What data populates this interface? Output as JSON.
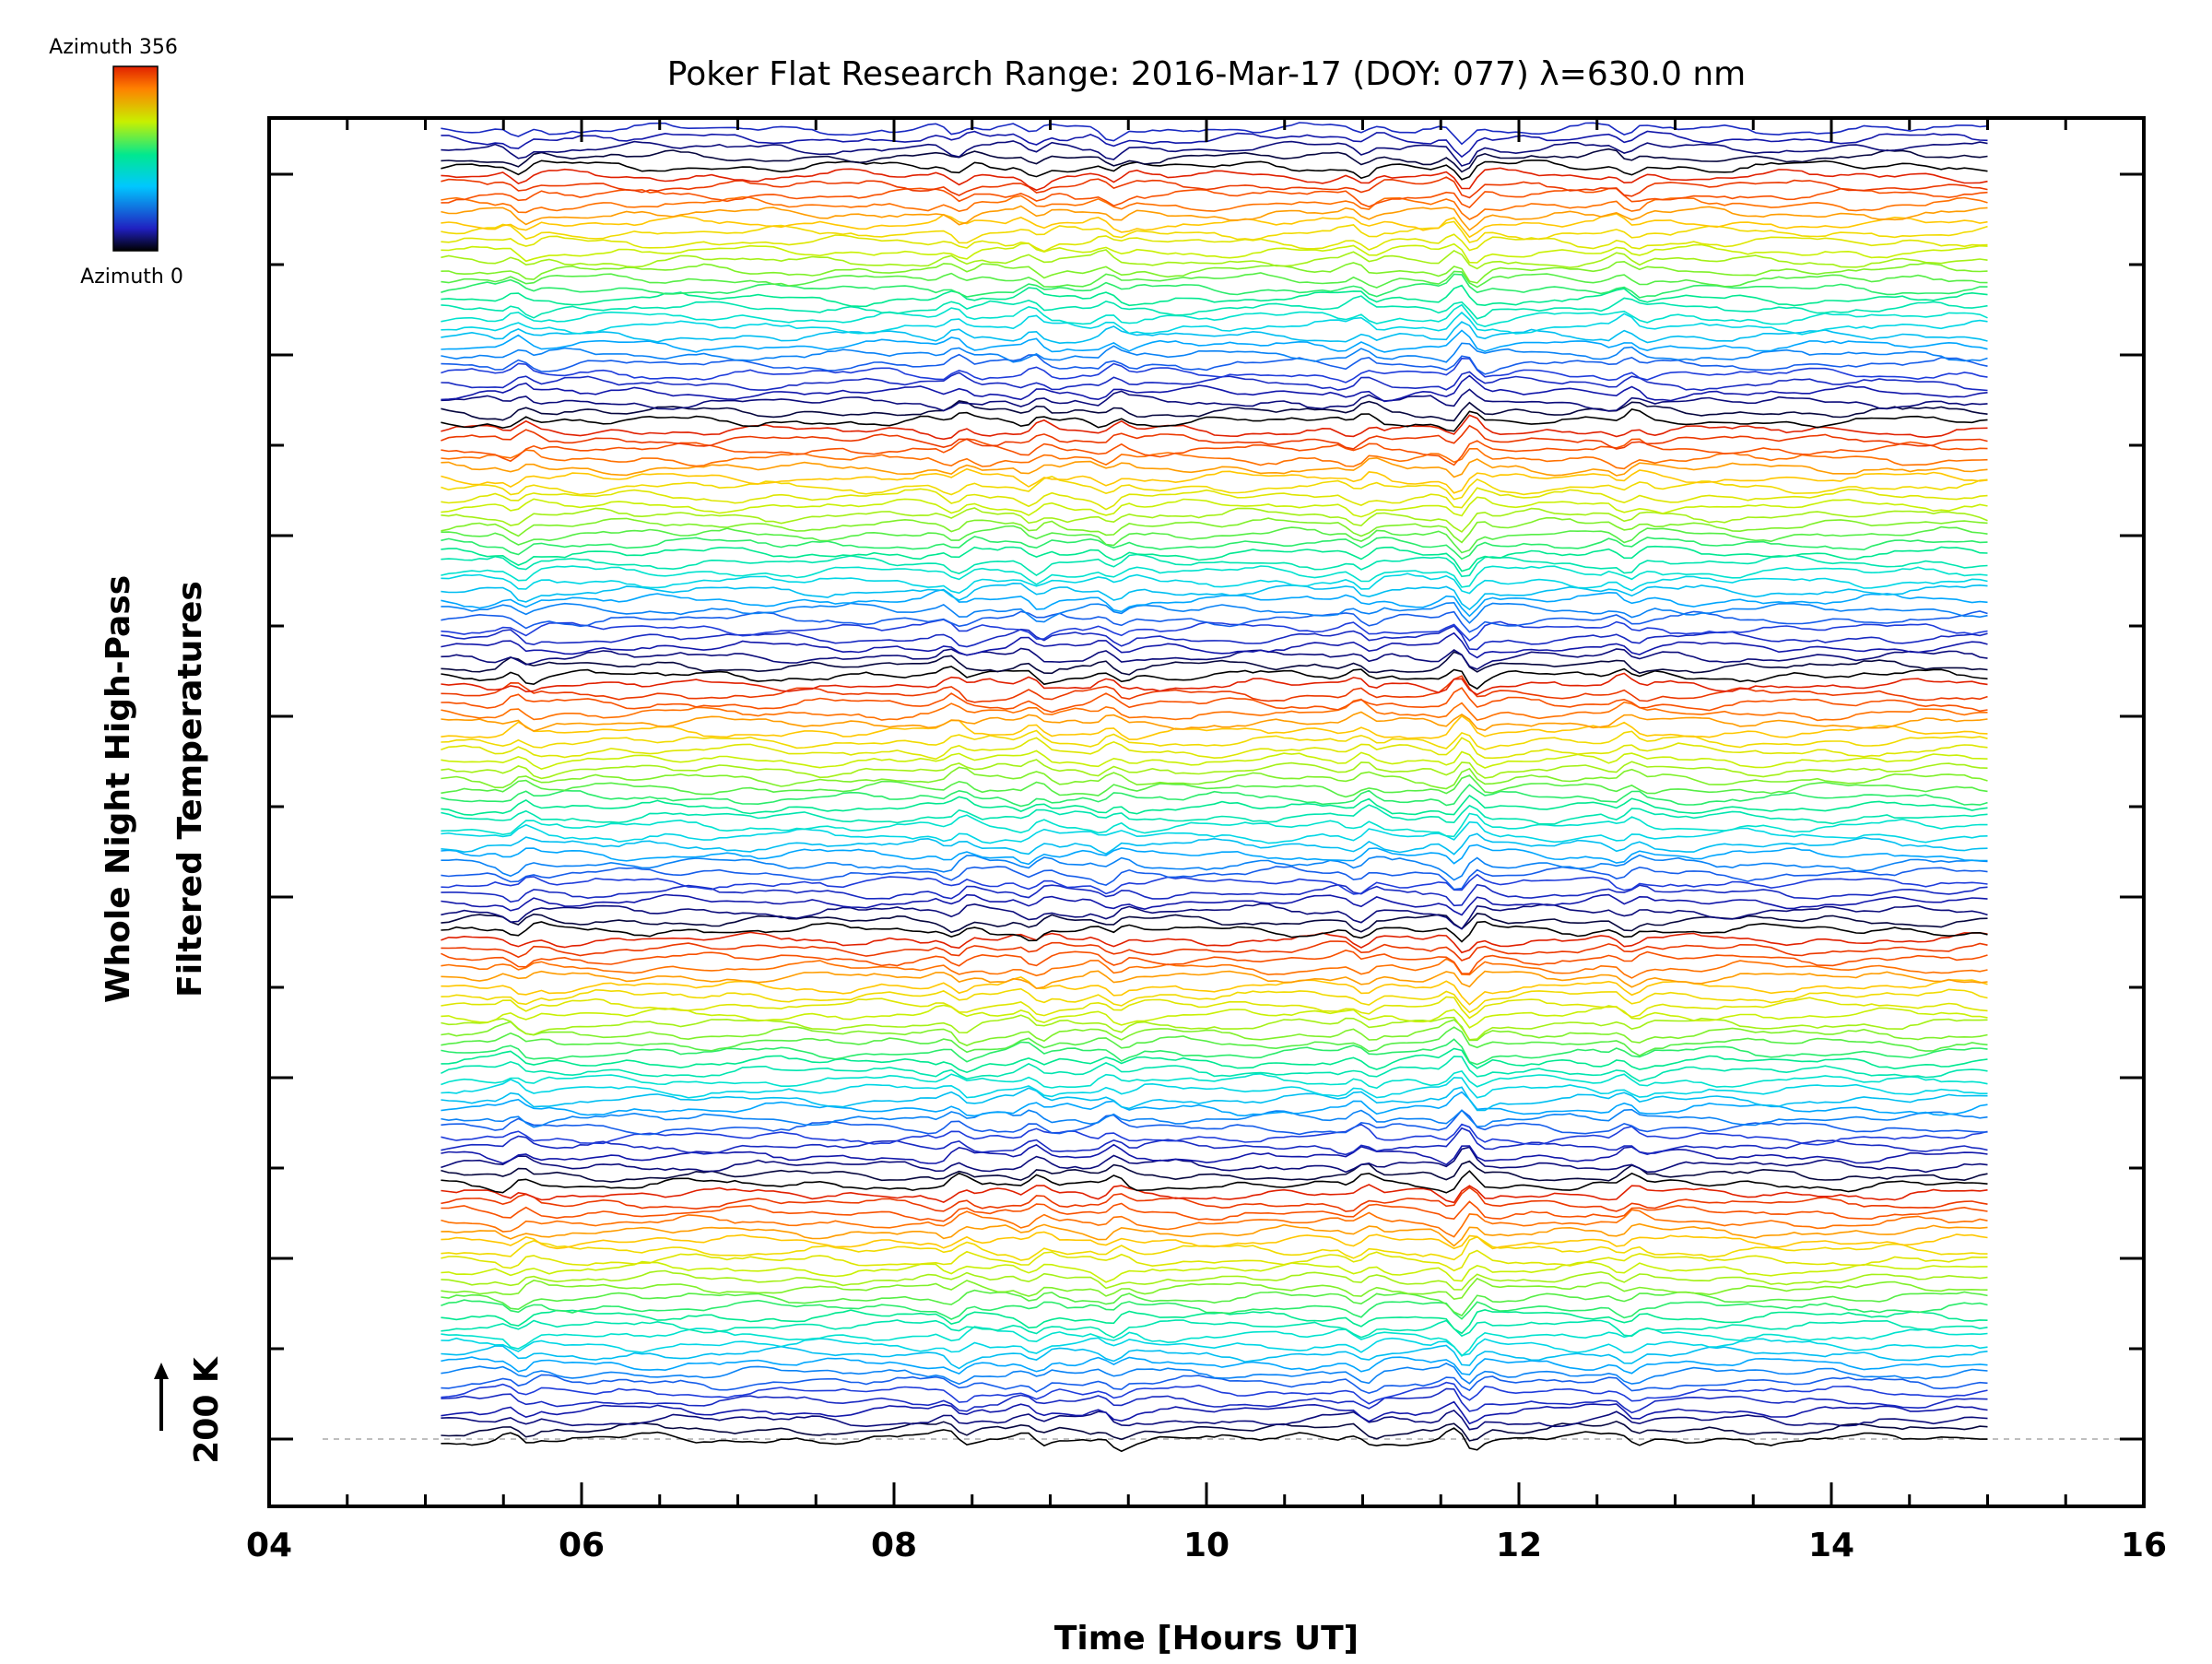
{
  "chart_data": {
    "type": "line",
    "title": "Poker Flat Research Range: 2016-Mar-17 (DOY: 077) λ=630.0 nm",
    "xlabel": "Time [Hours UT]",
    "ylabel_line1": "Whole Night High-Pass",
    "ylabel_line2": "Filtered Temperatures",
    "xlim": [
      4,
      16
    ],
    "x_ticks": [
      "04",
      "06",
      "08",
      "10",
      "12",
      "14",
      "16"
    ],
    "x_tick_values": [
      4,
      6,
      8,
      10,
      12,
      14,
      16
    ],
    "time_range": [
      5.1,
      15.0
    ],
    "stack_count": 140,
    "scale_bar_label": "200 K",
    "colorbar": {
      "top_label": "Azimuth 356",
      "bottom_label": "Azimuth 0",
      "colormap": "rainbow",
      "colors": [
        "#000000",
        "#2020c0",
        "#00c8ff",
        "#00e890",
        "#c8f000",
        "#ff8000",
        "#e02000"
      ]
    },
    "disturbance_times": [
      5.6,
      8.4,
      8.9,
      9.4,
      11.0,
      11.65,
      12.7
    ],
    "line_color_order": [
      "#000000",
      "#1010a0",
      "#2040e0",
      "#00a0ff",
      "#00e0e0",
      "#00e890",
      "#70f030",
      "#d0f000",
      "#ffd000",
      "#ff6000",
      "#e02000"
    ]
  }
}
